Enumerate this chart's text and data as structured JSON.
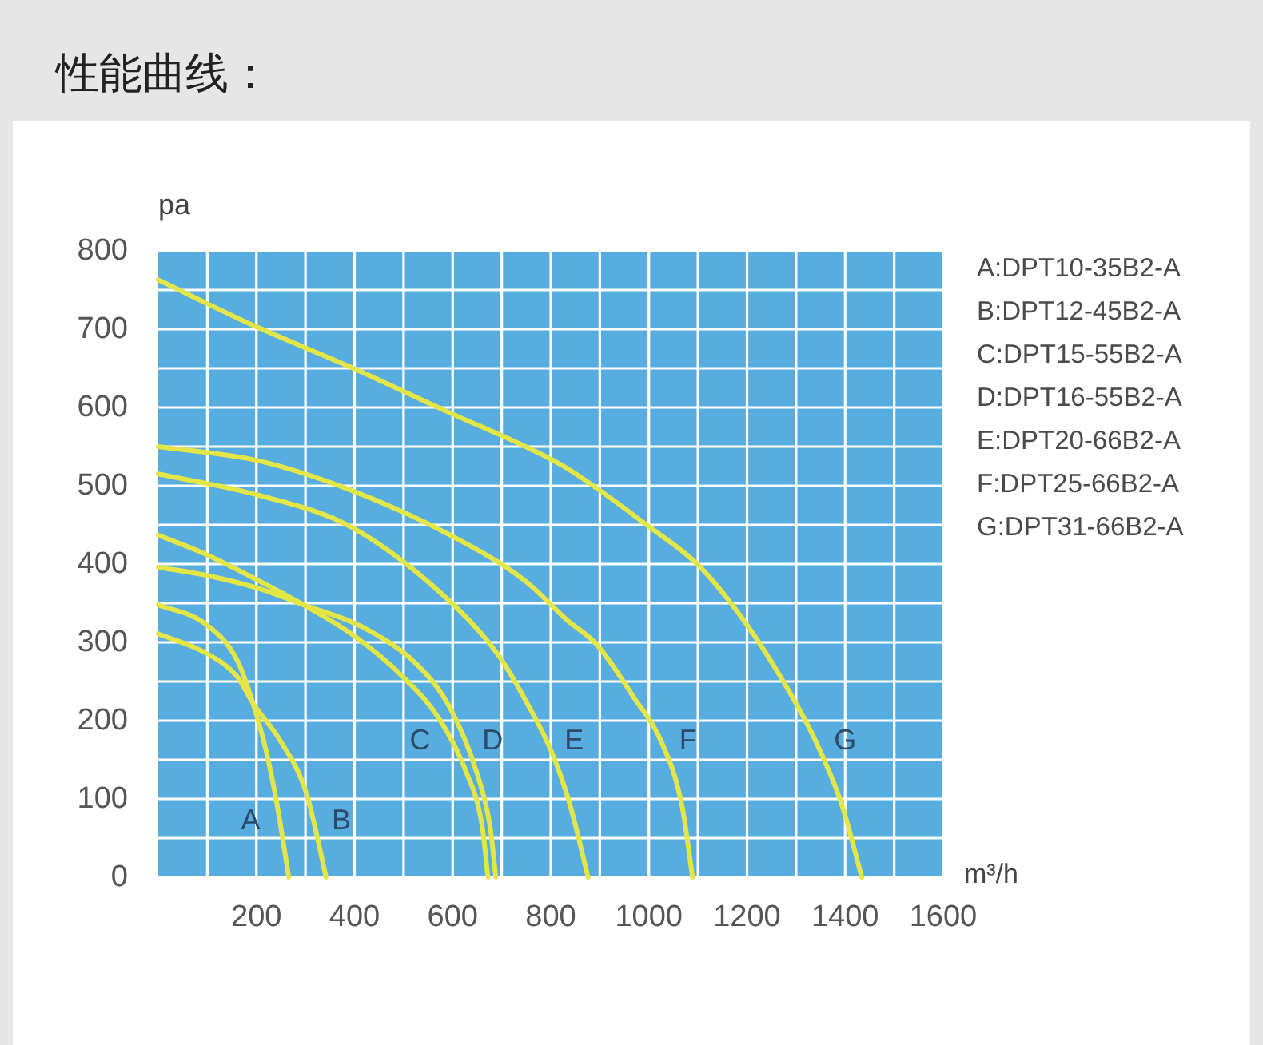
{
  "chart_data": {
    "type": "line",
    "title": "性能曲线：",
    "xlabel": "m³/h",
    "ylabel": "pa",
    "xlim": [
      0,
      1600
    ],
    "ylim": [
      0,
      800
    ],
    "xticks": [
      {
        "value": 100,
        "label": null
      },
      200,
      {
        "value": 300,
        "label": null
      },
      400,
      {
        "value": 500,
        "label": null
      },
      600,
      {
        "value": 700,
        "label": null
      },
      800,
      {
        "value": 900,
        "label": null
      },
      1000,
      {
        "value": 1100,
        "label": null
      },
      1200,
      {
        "value": 1300,
        "label": null
      },
      1400,
      {
        "value": 1500,
        "label": null
      },
      1600
    ],
    "yticks": [
      0,
      {
        "value": 50,
        "label": null
      },
      100,
      {
        "value": 150,
        "label": null
      },
      200,
      {
        "value": 250,
        "label": null
      },
      300,
      {
        "value": 350,
        "label": null
      },
      400,
      {
        "value": 450,
        "label": null
      },
      500,
      {
        "value": 550,
        "label": null
      },
      600,
      {
        "value": 650,
        "label": null
      },
      700,
      {
        "value": 750,
        "label": null
      },
      800
    ],
    "grid": true,
    "series": [
      {
        "name": "A",
        "color": "#e3e645",
        "x": [
          0,
          95,
          161,
          193,
          220,
          242,
          266
        ],
        "values": [
          348,
          324,
          277,
          222,
          161,
          93,
          0
        ]
      },
      {
        "name": "B",
        "color": "#e3e645",
        "x": [
          0,
          95,
          161,
          193,
          248,
          302,
          342
        ],
        "values": [
          311,
          287,
          256,
          222,
          175,
          107,
          0
        ]
      },
      {
        "name": "C",
        "color": "#e3e645",
        "x": [
          0,
          95,
          204,
          296,
          400,
          497,
          573,
          628,
          660,
          672
        ],
        "values": [
          437,
          413,
          379,
          348,
          308,
          257,
          202,
          134,
          66,
          0
        ]
      },
      {
        "name": "D",
        "color": "#e3e645",
        "x": [
          0,
          95,
          204,
          296,
          421,
          530,
          595,
          649,
          676,
          688
        ],
        "values": [
          396,
          386,
          369,
          348,
          318,
          270,
          216,
          134,
          66,
          0
        ]
      },
      {
        "name": "E",
        "color": "#e3e645",
        "x": [
          0,
          204,
          394,
          595,
          693,
          752,
          801,
          839,
          876
        ],
        "values": [
          515,
          488,
          447,
          352,
          284,
          222,
          161,
          93,
          0
        ]
      },
      {
        "name": "F",
        "color": "#e3e645",
        "x": [
          0,
          204,
          394,
          595,
          747,
          834,
          894,
          970,
          1024,
          1067,
          1089
        ],
        "values": [
          550,
          532,
          494,
          437,
          379,
          328,
          297,
          229,
          175,
          93,
          0
        ]
      },
      {
        "name": "G",
        "color": "#e3e645",
        "x": [
          0,
          193,
          394,
          595,
          752,
          834,
          1002,
          1100,
          1198,
          1274,
          1339,
          1393,
          1434
        ],
        "values": [
          763,
          705,
          651,
          593,
          549,
          522,
          447,
          399,
          324,
          250,
          175,
          93,
          0
        ]
      }
    ],
    "annotations": [
      "A:DPT10-35B2-A",
      "B:DPT12-45B2-A",
      "C:DPT15-55B2-A",
      "D:DPT16-55B2-A",
      "E:DPT20-66B2-A",
      "F:DPT25-66B2-A",
      "G:DPT31-66B2-A"
    ]
  }
}
